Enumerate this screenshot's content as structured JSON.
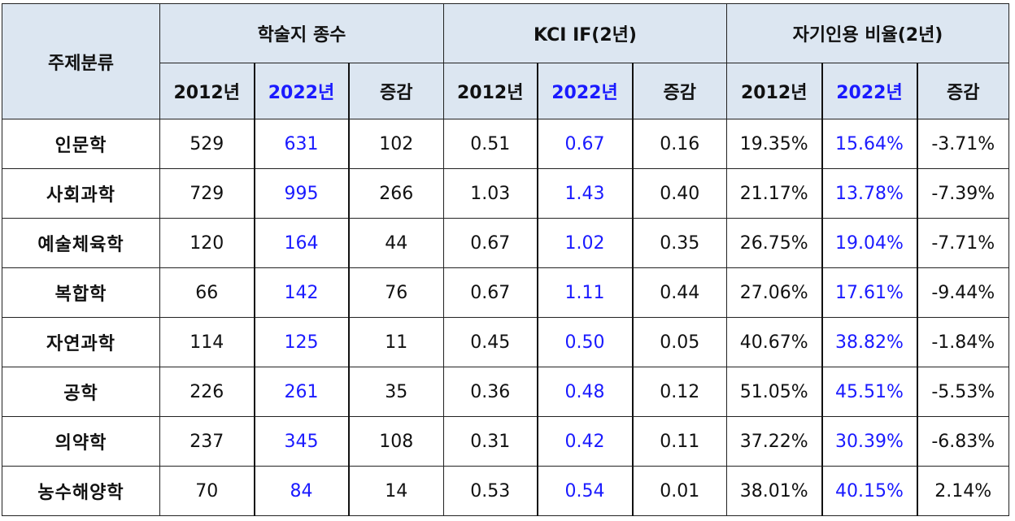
{
  "table": {
    "header": {
      "corner": "주제분류",
      "groups": [
        "학술지 종수",
        "KCI IF(2년)",
        "자기인용 비율(2년)"
      ],
      "years": [
        "2012년",
        "2022년",
        "증감"
      ]
    },
    "rows": [
      [
        "인문학",
        "529",
        "631",
        "102",
        "0.51",
        "0.67",
        "0.16",
        "19.35%",
        "15.64%",
        "-3.71%"
      ],
      [
        "사회과학",
        "729",
        "995",
        "266",
        "1.03",
        "1.43",
        "0.40",
        "21.17%",
        "13.78%",
        "-7.39%"
      ],
      [
        "예술체육학",
        "120",
        "164",
        "44",
        "0.67",
        "1.02",
        "0.35",
        "26.75%",
        "19.04%",
        "-7.71%"
      ],
      [
        "복합학",
        "66",
        "142",
        "76",
        "0.67",
        "1.11",
        "0.44",
        "27.06%",
        "17.61%",
        "-9.44%"
      ],
      [
        "자연과학",
        "114",
        "125",
        "11",
        "0.45",
        "0.50",
        "0.05",
        "40.67%",
        "38.82%",
        "-1.84%"
      ],
      [
        "공학",
        "226",
        "261",
        "35",
        "0.36",
        "0.48",
        "0.12",
        "51.05%",
        "45.51%",
        "-5.53%"
      ],
      [
        "의약학",
        "237",
        "345",
        "108",
        "0.31",
        "0.42",
        "0.11",
        "37.22%",
        "30.39%",
        "-6.83%"
      ],
      [
        "농수해양학",
        "70",
        "84",
        "14",
        "0.53",
        "0.54",
        "0.01",
        "38.01%",
        "40.15%",
        "2.14%"
      ]
    ]
  }
}
